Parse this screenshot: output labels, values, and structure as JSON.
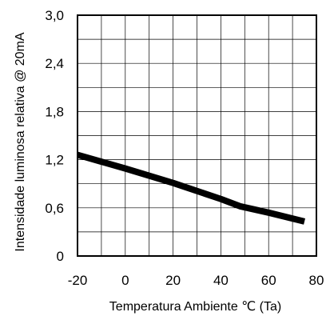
{
  "chart_data": {
    "type": "line",
    "title": "",
    "xlabel": "Temperatura Ambiente ℃ (Ta)",
    "ylabel": "Intensidade luminosa relativa @ 20mA",
    "xlim": [
      -20,
      80
    ],
    "ylim": [
      0,
      3.0
    ],
    "x_ticks": [
      -20,
      0,
      20,
      40,
      60,
      80
    ],
    "x_tick_labels": [
      "-20",
      "0",
      "20",
      "40",
      "60",
      "80"
    ],
    "y_ticks": [
      0,
      0.6,
      1.2,
      1.8,
      2.4,
      3.0
    ],
    "y_tick_labels": [
      "0",
      "0,6",
      "1,2",
      "1,8",
      "2,4",
      "3,0"
    ],
    "grid": true,
    "x_minor_step": 10,
    "y_minor_step": 0.3,
    "series": [
      {
        "x": [
          -20,
          0,
          20,
          40,
          48,
          60,
          75
        ],
        "y": [
          1.26,
          1.09,
          0.91,
          0.71,
          0.62,
          0.54,
          0.43
        ],
        "color": "#000000"
      }
    ]
  }
}
